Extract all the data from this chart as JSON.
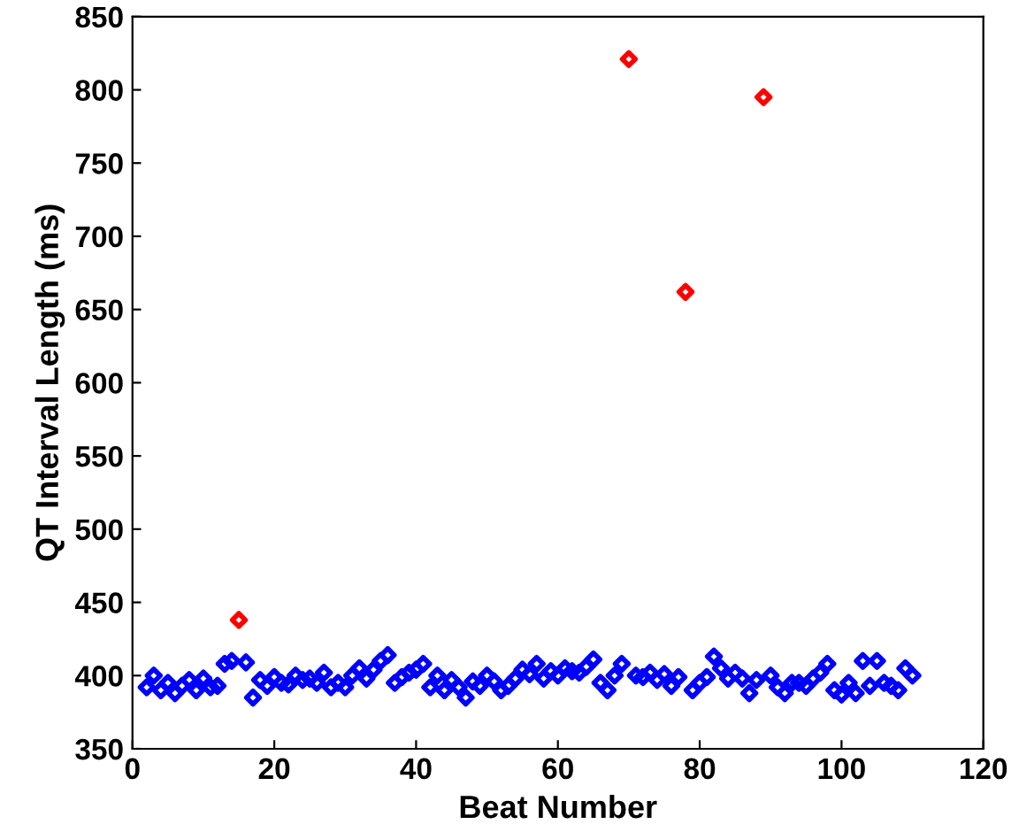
{
  "chart_data": {
    "type": "scatter",
    "xlabel": "Beat Number",
    "ylabel": "QT Interval Length (ms)",
    "xlim": [
      0,
      120
    ],
    "xticks": [
      0,
      20,
      40,
      60,
      80,
      100,
      120
    ],
    "ylim": [
      350,
      850
    ],
    "yticks": [
      350,
      400,
      450,
      500,
      550,
      600,
      650,
      700,
      750,
      800,
      850
    ],
    "grid": false,
    "marker": "diamond",
    "series": [
      {
        "color": "#0000ff",
        "x": [
          2,
          3,
          4,
          5,
          6,
          7,
          8,
          9,
          10,
          11,
          12,
          13,
          14,
          16,
          17,
          18,
          19,
          20,
          21,
          22,
          23,
          24,
          25,
          26,
          27,
          28,
          29,
          30,
          31,
          32,
          33,
          34,
          35,
          36,
          37,
          38,
          39,
          40,
          41,
          42,
          43,
          44,
          45,
          46,
          47,
          48,
          49,
          50,
          51,
          52,
          53,
          54,
          55,
          56,
          57,
          58,
          59,
          60,
          61,
          62,
          63,
          64,
          65,
          66,
          67,
          68,
          69,
          71,
          72,
          73,
          74,
          75,
          76,
          77,
          79,
          80,
          81,
          82,
          83,
          84,
          85,
          86,
          87,
          88,
          90,
          91,
          92,
          93,
          94,
          95,
          96,
          97,
          98,
          99,
          100,
          101,
          102,
          103,
          104,
          105,
          106,
          107,
          108,
          109,
          110
        ],
        "values": [
          392,
          400,
          390,
          395,
          388,
          393,
          397,
          390,
          398,
          392,
          393,
          408,
          410,
          409,
          385,
          397,
          393,
          399,
          395,
          394,
          400,
          397,
          398,
          395,
          402,
          392,
          395,
          392,
          400,
          405,
          398,
          404,
          410,
          414,
          395,
          399,
          402,
          404,
          408,
          392,
          400,
          390,
          397,
          392,
          385,
          396,
          393,
          400,
          396,
          390,
          393,
          398,
          404,
          401,
          408,
          398,
          403,
          400,
          405,
          403,
          402,
          406,
          411,
          395,
          390,
          400,
          408,
          400,
          399,
          402,
          397,
          401,
          393,
          399,
          390,
          395,
          399,
          413,
          405,
          398,
          402,
          398,
          388,
          397,
          400,
          392,
          388,
          395,
          395,
          393,
          398,
          402,
          408,
          390,
          387,
          395,
          388,
          410,
          393,
          410,
          395,
          393,
          390,
          405,
          400
        ]
      },
      {
        "color": "#ff0000",
        "x": [
          15,
          70,
          78,
          89
        ],
        "values": [
          438,
          821,
          662,
          795
        ]
      }
    ]
  }
}
